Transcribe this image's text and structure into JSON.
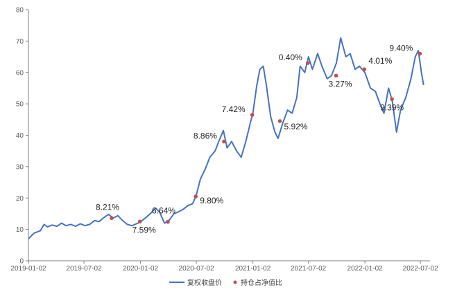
{
  "chart_data": {
    "type": "line",
    "x_axis": {
      "type": "date",
      "range": [
        "2019-01-02",
        "2022-07-15"
      ],
      "ticks": [
        "2019-01-02",
        "2019-07-02",
        "2020-01-02",
        "2020-07-02",
        "2021-01-02",
        "2021-07-02",
        "2022-01-02",
        "2022-07-02"
      ]
    },
    "y_axis": {
      "range": [
        0,
        80
      ],
      "ticks": [
        "0",
        "10",
        "20",
        "30",
        "40",
        "50",
        "60",
        "70",
        "80"
      ]
    },
    "grid": false,
    "legend_position": "bottom",
    "colors": {
      "line": "#4472c4",
      "marker": "#c0504d"
    },
    "series": [
      {
        "name": "复权收盘价",
        "kind": "line",
        "points": [
          [
            "2019-01-02",
            7.0
          ],
          [
            "2019-01-20",
            8.8
          ],
          [
            "2019-02-10",
            9.6
          ],
          [
            "2019-02-22",
            11.6
          ],
          [
            "2019-03-05",
            10.8
          ],
          [
            "2019-03-20",
            11.4
          ],
          [
            "2019-04-05",
            11.0
          ],
          [
            "2019-04-20",
            12.0
          ],
          [
            "2019-05-05",
            11.2
          ],
          [
            "2019-05-20",
            11.6
          ],
          [
            "2019-06-05",
            11.0
          ],
          [
            "2019-06-20",
            11.8
          ],
          [
            "2019-07-05",
            11.2
          ],
          [
            "2019-07-20",
            11.6
          ],
          [
            "2019-08-05",
            12.8
          ],
          [
            "2019-08-20",
            12.5
          ],
          [
            "2019-09-05",
            13.8
          ],
          [
            "2019-09-20",
            14.8
          ],
          [
            "2019-10-05",
            13.6
          ],
          [
            "2019-10-20",
            14.4
          ],
          [
            "2019-11-05",
            12.8
          ],
          [
            "2019-11-20",
            11.6
          ],
          [
            "2019-12-05",
            11.2
          ],
          [
            "2019-12-20",
            11.8
          ],
          [
            "2020-01-02",
            12.4
          ],
          [
            "2020-01-20",
            13.8
          ],
          [
            "2020-02-05",
            15.2
          ],
          [
            "2020-02-20",
            16.8
          ],
          [
            "2020-03-05",
            15.4
          ],
          [
            "2020-03-20",
            12.0
          ],
          [
            "2020-04-05",
            13.0
          ],
          [
            "2020-04-20",
            15.0
          ],
          [
            "2020-05-05",
            15.6
          ],
          [
            "2020-05-20",
            16.4
          ],
          [
            "2020-06-05",
            17.6
          ],
          [
            "2020-06-20",
            18.2
          ],
          [
            "2020-07-02",
            21.0
          ],
          [
            "2020-07-15",
            26.0
          ],
          [
            "2020-08-01",
            29.5
          ],
          [
            "2020-08-15",
            33.0
          ],
          [
            "2020-09-01",
            35.0
          ],
          [
            "2020-09-15",
            38.5
          ],
          [
            "2020-09-28",
            41.5
          ],
          [
            "2020-10-10",
            36.0
          ],
          [
            "2020-10-25",
            38.0
          ],
          [
            "2020-11-10",
            35.0
          ],
          [
            "2020-11-25",
            33.0
          ],
          [
            "2020-12-10",
            38.0
          ],
          [
            "2020-12-25",
            44.0
          ],
          [
            "2021-01-02",
            47.0
          ],
          [
            "2021-01-15",
            56.0
          ],
          [
            "2021-01-25",
            61.0
          ],
          [
            "2021-02-05",
            62.0
          ],
          [
            "2021-02-15",
            56.0
          ],
          [
            "2021-03-01",
            46.0
          ],
          [
            "2021-03-15",
            41.0
          ],
          [
            "2021-03-25",
            39.0
          ],
          [
            "2021-04-10",
            44.0
          ],
          [
            "2021-04-25",
            48.0
          ],
          [
            "2021-05-10",
            47.0
          ],
          [
            "2021-05-25",
            52.0
          ],
          [
            "2021-06-05",
            62.0
          ],
          [
            "2021-06-20",
            60.0
          ],
          [
            "2021-07-02",
            65.0
          ],
          [
            "2021-07-15",
            61.0
          ],
          [
            "2021-08-01",
            66.0
          ],
          [
            "2021-08-15",
            62.0
          ],
          [
            "2021-09-01",
            58.0
          ],
          [
            "2021-09-15",
            59.0
          ],
          [
            "2021-10-01",
            63.0
          ],
          [
            "2021-10-15",
            71.0
          ],
          [
            "2021-11-01",
            65.0
          ],
          [
            "2021-11-15",
            66.0
          ],
          [
            "2021-12-01",
            61.0
          ],
          [
            "2021-12-15",
            62.0
          ],
          [
            "2022-01-02",
            60.0
          ],
          [
            "2022-01-20",
            55.0
          ],
          [
            "2022-02-05",
            54.0
          ],
          [
            "2022-02-20",
            50.0
          ],
          [
            "2022-03-05",
            47.0
          ],
          [
            "2022-03-20",
            55.0
          ],
          [
            "2022-04-01",
            51.0
          ],
          [
            "2022-04-15",
            41.0
          ],
          [
            "2022-04-28",
            48.0
          ],
          [
            "2022-05-15",
            52.0
          ],
          [
            "2022-06-01",
            58.0
          ],
          [
            "2022-06-15",
            65.0
          ],
          [
            "2022-06-25",
            67.0
          ],
          [
            "2022-07-05",
            60.0
          ],
          [
            "2022-07-12",
            56.0
          ]
        ]
      },
      {
        "name": "持仓占净值比",
        "kind": "marker",
        "points": [
          {
            "date": "2019-09-30",
            "value": 13.6,
            "label": "8.21%"
          },
          {
            "date": "2019-12-31",
            "value": 12.5,
            "label": "7.59%"
          },
          {
            "date": "2020-03-31",
            "value": 12.4,
            "label": "6.64%"
          },
          {
            "date": "2020-06-30",
            "value": 20.5,
            "label": "9.80%"
          },
          {
            "date": "2020-09-30",
            "value": 38.0,
            "label": "8.86%"
          },
          {
            "date": "2020-12-31",
            "value": 46.5,
            "label": "7.42%"
          },
          {
            "date": "2021-03-31",
            "value": 44.5,
            "label": "5.92%"
          },
          {
            "date": "2021-06-30",
            "value": 63.0,
            "label": "0.40%"
          },
          {
            "date": "2021-09-30",
            "value": 59.0,
            "label": "3.27%"
          },
          {
            "date": "2021-12-31",
            "value": 61.0,
            "label": "4.01%"
          },
          {
            "date": "2022-03-31",
            "value": 51.5,
            "label": "9.39%"
          },
          {
            "date": "2022-06-30",
            "value": 66.0,
            "label": "9.40%"
          }
        ]
      }
    ]
  }
}
